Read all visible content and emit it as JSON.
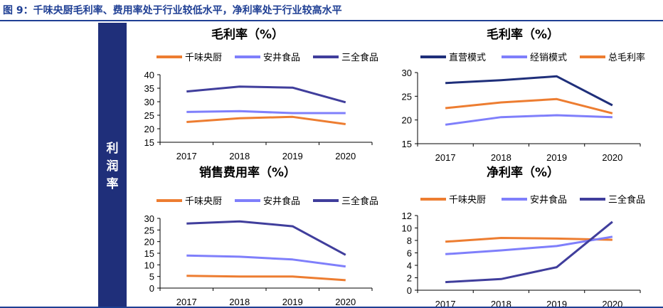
{
  "header": {
    "title": "图 9：千味央厨毛利率、费用率处于行业较低水平，净利率处于行业较高水平"
  },
  "sidebar": {
    "label_chars": [
      "利",
      "润",
      "率"
    ]
  },
  "colors": {
    "orange": "#ed7d31",
    "light_blue": "#7f7ffb",
    "dark_blue": "#403e9c",
    "navy": "#1f2f7a"
  },
  "chart_data": [
    {
      "type": "line",
      "title": "毛利率（%）",
      "categories": [
        "2017",
        "2018",
        "2019",
        "2020"
      ],
      "ylim": [
        15,
        40
      ],
      "yticks": [
        "15",
        "20",
        "25",
        "30",
        "35",
        "40"
      ],
      "legend_position": "top",
      "series": [
        {
          "name": "千味央厨",
          "color": "#ed7d31",
          "values": [
            22.5,
            23.9,
            24.4,
            21.7
          ]
        },
        {
          "name": "安井食品",
          "color": "#7f7ffb",
          "values": [
            26.2,
            26.5,
            25.8,
            25.8
          ]
        },
        {
          "name": "三全食品",
          "color": "#403e9c",
          "values": [
            33.8,
            35.6,
            35.2,
            29.8
          ]
        }
      ]
    },
    {
      "type": "line",
      "title": "毛利率（%）",
      "categories": [
        "2017",
        "2018",
        "2019",
        "2020"
      ],
      "ylim": [
        15,
        30
      ],
      "yticks": [
        "15",
        "20",
        "25",
        "30"
      ],
      "legend_position": "top",
      "series": [
        {
          "name": "直营模式",
          "color": "#1f2f7a",
          "values": [
            27.8,
            28.4,
            29.2,
            23.1
          ]
        },
        {
          "name": "经销模式",
          "color": "#7f7ffb",
          "values": [
            19.0,
            20.6,
            21.0,
            20.6
          ]
        },
        {
          "name": "总毛利率",
          "color": "#ed7d31",
          "values": [
            22.5,
            23.7,
            24.4,
            21.4
          ]
        }
      ]
    },
    {
      "type": "line",
      "title": "销售费用率（%）",
      "categories": [
        "2017",
        "2018",
        "2019",
        "2020"
      ],
      "ylim": [
        0,
        30
      ],
      "yticks": [
        "0",
        "5",
        "10",
        "15",
        "20",
        "25",
        "30"
      ],
      "legend_position": "top",
      "series": [
        {
          "name": "千味央厨",
          "color": "#ed7d31",
          "values": [
            5.3,
            5.0,
            5.0,
            3.4
          ]
        },
        {
          "name": "安井食品",
          "color": "#7f7ffb",
          "values": [
            14.0,
            13.5,
            12.3,
            9.3
          ]
        },
        {
          "name": "三全食品",
          "color": "#403e9c",
          "values": [
            27.8,
            28.7,
            26.6,
            14.3
          ]
        }
      ]
    },
    {
      "type": "line",
      "title": "净利率（%）",
      "categories": [
        "2017",
        "2018",
        "2019",
        "2020"
      ],
      "ylim": [
        0,
        12
      ],
      "yticks": [
        "0",
        "2",
        "4",
        "6",
        "8",
        "10",
        "12"
      ],
      "legend_position": "top",
      "series": [
        {
          "name": "千味央厨",
          "color": "#ed7d31",
          "values": [
            7.8,
            8.4,
            8.3,
            8.1
          ]
        },
        {
          "name": "安井食品",
          "color": "#7f7ffb",
          "values": [
            5.8,
            6.4,
            7.1,
            8.6
          ]
        },
        {
          "name": "三全食品",
          "color": "#403e9c",
          "values": [
            1.3,
            1.8,
            3.7,
            11.0
          ]
        }
      ]
    }
  ]
}
